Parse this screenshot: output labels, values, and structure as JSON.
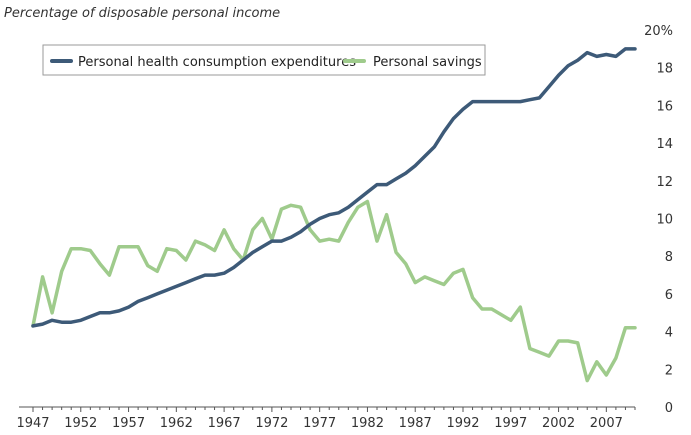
{
  "chart_data": {
    "type": "line",
    "subtitle": "Percentage of disposable personal income",
    "xlabel": "",
    "ylabel": "",
    "xlim": [
      1947,
      2010
    ],
    "ylim": [
      0,
      20
    ],
    "x_ticks": [
      1947,
      1952,
      1957,
      1962,
      1967,
      1972,
      1977,
      1982,
      1987,
      1992,
      1997,
      2002,
      2007
    ],
    "y_ticks": [
      0,
      2,
      4,
      6,
      8,
      10,
      12,
      14,
      16,
      18,
      20
    ],
    "y_tick_labels": [
      "0",
      "2",
      "4",
      "6",
      "8",
      "10",
      "12",
      "14",
      "16",
      "18",
      "20%"
    ],
    "y_axis_side": "right",
    "grid": false,
    "legend_placement": "top-left",
    "x": [
      1947,
      1948,
      1949,
      1950,
      1951,
      1952,
      1953,
      1954,
      1955,
      1956,
      1957,
      1958,
      1959,
      1960,
      1961,
      1962,
      1963,
      1964,
      1965,
      1966,
      1967,
      1968,
      1969,
      1970,
      1971,
      1972,
      1973,
      1974,
      1975,
      1976,
      1977,
      1978,
      1979,
      1980,
      1981,
      1982,
      1983,
      1984,
      1985,
      1986,
      1987,
      1988,
      1989,
      1990,
      1991,
      1992,
      1993,
      1994,
      1995,
      1996,
      1997,
      1998,
      1999,
      2000,
      2001,
      2002,
      2003,
      2004,
      2005,
      2006,
      2007,
      2008,
      2009,
      2010
    ],
    "series": [
      {
        "name": "Personal health consumption expenditures",
        "color": "#3d5a78",
        "values": [
          4.3,
          4.4,
          4.6,
          4.5,
          4.5,
          4.6,
          4.8,
          5.0,
          5.0,
          5.1,
          5.3,
          5.6,
          5.8,
          6.0,
          6.2,
          6.4,
          6.6,
          6.8,
          7.0,
          7.0,
          7.1,
          7.4,
          7.8,
          8.2,
          8.5,
          8.8,
          8.8,
          9.0,
          9.3,
          9.7,
          10.0,
          10.2,
          10.3,
          10.6,
          11.0,
          11.4,
          11.8,
          11.8,
          12.1,
          12.4,
          12.8,
          13.3,
          13.8,
          14.6,
          15.3,
          15.8,
          16.2,
          16.2,
          16.2,
          16.2,
          16.2,
          16.2,
          16.3,
          16.4,
          17.0,
          17.6,
          18.1,
          18.4,
          18.8,
          18.6,
          18.7,
          18.6,
          19.0,
          19.0
        ]
      },
      {
        "name": "Personal savings",
        "color": "#9fcb8c",
        "values": [
          4.3,
          6.9,
          5.0,
          7.2,
          8.4,
          8.4,
          8.3,
          7.6,
          7.0,
          8.5,
          8.5,
          8.5,
          7.5,
          7.2,
          8.4,
          8.3,
          7.8,
          8.8,
          8.6,
          8.3,
          9.4,
          8.4,
          7.8,
          9.4,
          10.0,
          8.9,
          10.5,
          10.7,
          10.6,
          9.4,
          8.8,
          8.9,
          8.8,
          9.8,
          10.6,
          10.9,
          8.8,
          10.2,
          8.2,
          7.6,
          6.6,
          6.9,
          6.7,
          6.5,
          7.1,
          7.3,
          5.8,
          5.2,
          5.2,
          4.9,
          4.6,
          5.3,
          3.1,
          2.9,
          2.7,
          3.5,
          3.5,
          3.4,
          1.4,
          2.4,
          1.7,
          2.6,
          4.2,
          4.2
        ]
      }
    ]
  }
}
